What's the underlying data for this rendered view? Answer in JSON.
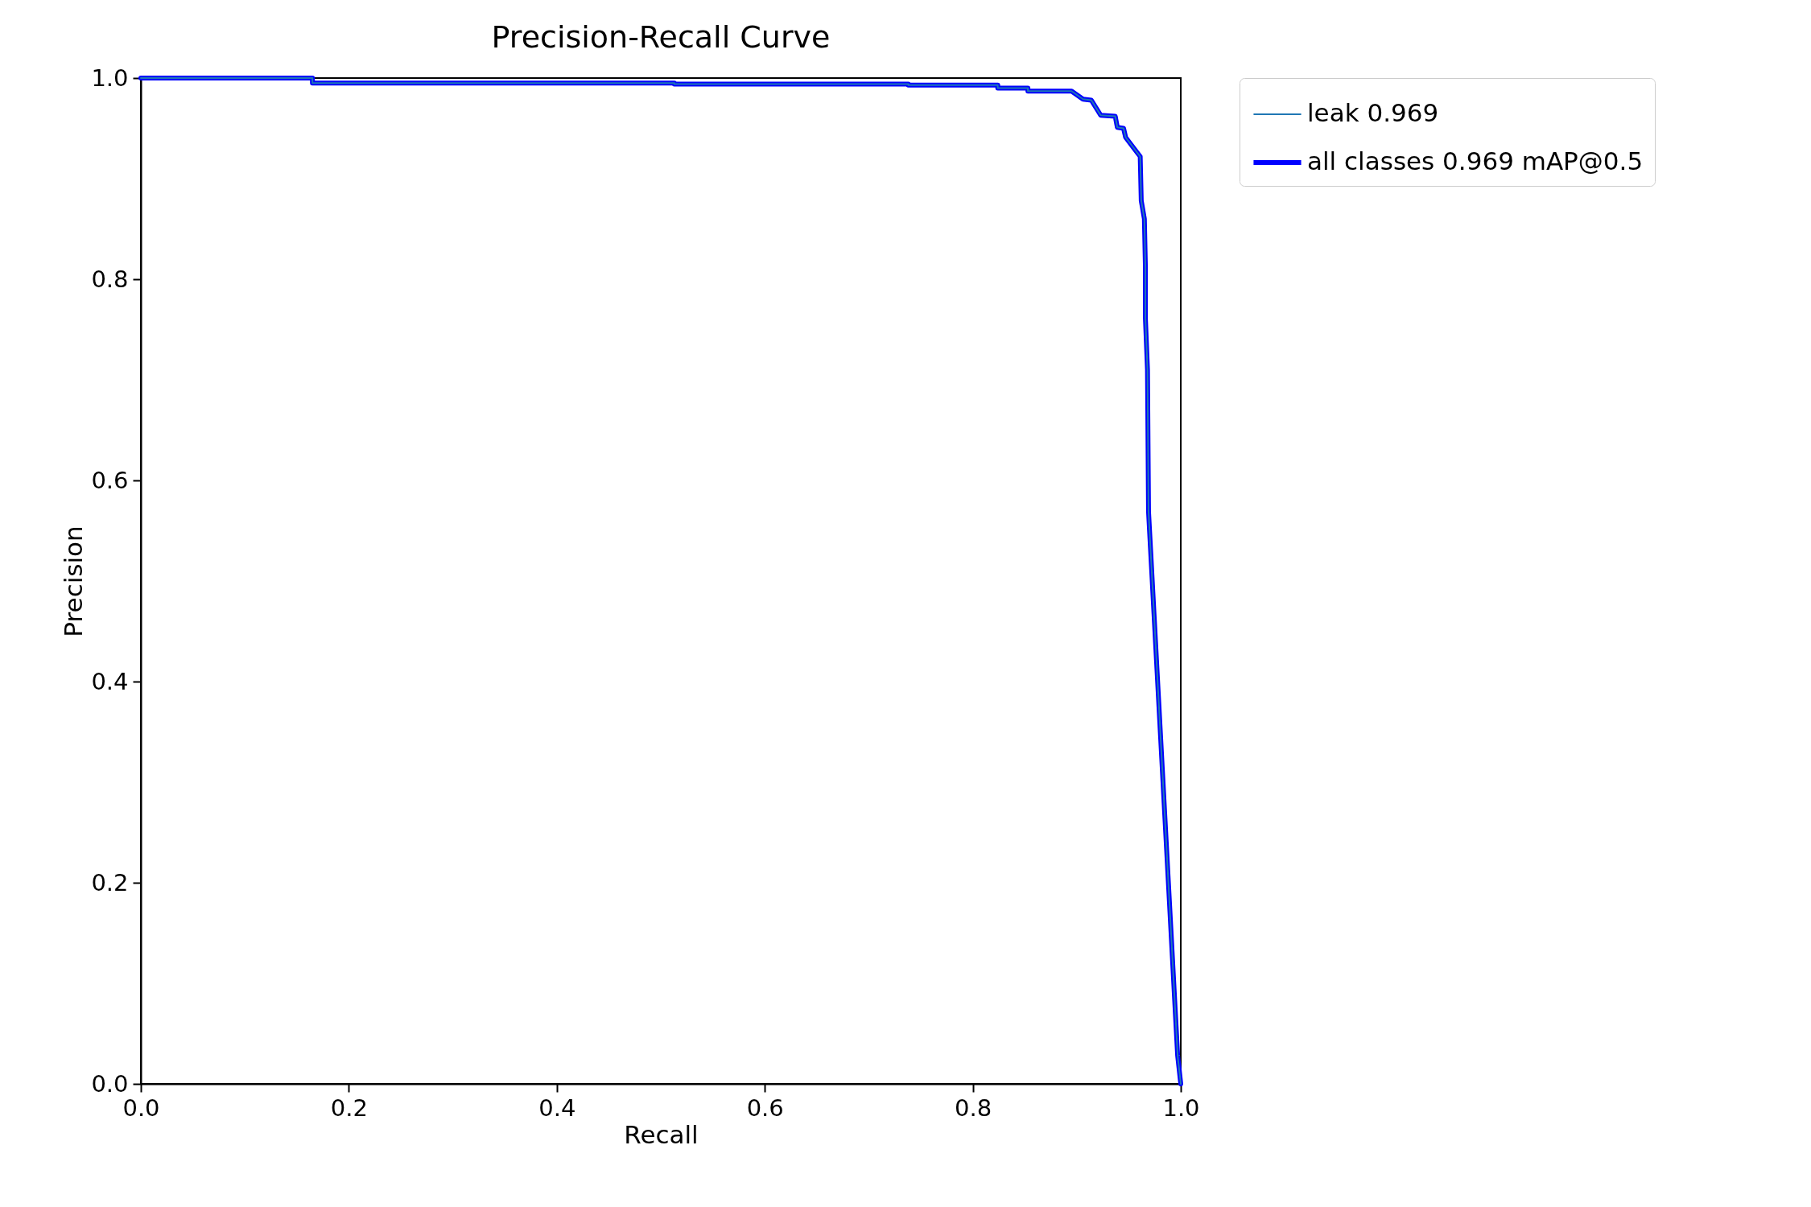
{
  "chart_data": {
    "type": "line",
    "title": "Precision-Recall Curve",
    "xlabel": "Recall",
    "ylabel": "Precision",
    "xlim": [
      0,
      1
    ],
    "ylim": [
      0,
      1
    ],
    "xticks": [
      {
        "value": 0,
        "label": "0.0"
      },
      0.2,
      0.4,
      0.6,
      0.8,
      {
        "value": 1,
        "label": "1.0"
      }
    ],
    "yticks": [
      {
        "value": 0,
        "label": "0.0"
      },
      0.2,
      0.4,
      0.6,
      0.8,
      {
        "value": 1,
        "label": "1.0"
      }
    ],
    "grid": false,
    "legend": "right",
    "marker": "none",
    "line_style": "solid",
    "x": [
      0,
      0.165,
      0.165,
      0.513,
      0.513,
      0.738,
      0.738,
      0.824,
      0.824,
      0.853,
      0.853,
      0.895,
      0.906,
      0.914,
      0.923,
      0.937,
      0.939,
      0.945,
      0.947,
      0.958,
      0.961,
      0.962,
      0.965,
      0.966,
      0.966,
      0.968,
      0.969,
      0.997,
      1.0
    ],
    "series": [
      {
        "name": "leak 0.969",
        "color": "#1f77b4",
        "values": [
          1.0,
          1.0,
          0.995,
          0.995,
          0.994,
          0.994,
          0.993,
          0.993,
          0.99,
          0.99,
          0.987,
          0.987,
          0.979,
          0.978,
          0.963,
          0.962,
          0.951,
          0.95,
          0.941,
          0.926,
          0.922,
          0.878,
          0.86,
          0.812,
          0.761,
          0.71,
          0.569,
          0.028,
          0.0
        ]
      },
      {
        "name": "all classes 0.969 mAP@0.5",
        "color": "#0000ff",
        "values": [
          1.0,
          1.0,
          0.995,
          0.995,
          0.994,
          0.994,
          0.993,
          0.993,
          0.99,
          0.99,
          0.987,
          0.987,
          0.979,
          0.978,
          0.963,
          0.962,
          0.951,
          0.95,
          0.941,
          0.926,
          0.922,
          0.878,
          0.86,
          0.812,
          0.761,
          0.71,
          0.569,
          0.028,
          0.0
        ]
      }
    ]
  }
}
